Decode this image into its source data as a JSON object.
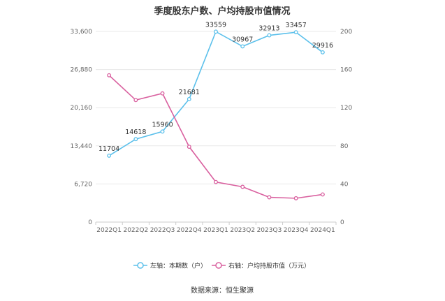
{
  "chart_data": {
    "type": "line",
    "title": "季度股东户数、户均持股市值情况",
    "categories": [
      "2022Q1",
      "2022Q2",
      "2022Q3",
      "2022Q4",
      "2023Q1",
      "2023Q2",
      "2023Q3",
      "2023Q4",
      "2024Q1"
    ],
    "left_axis": {
      "ticks": [
        "0",
        "6,720",
        "13,440",
        "20,160",
        "26,880",
        "33,600"
      ],
      "ylim": [
        0,
        33600
      ]
    },
    "right_axis": {
      "ticks": [
        "0",
        "40",
        "80",
        "120",
        "160",
        "200"
      ],
      "ylim": [
        0,
        200
      ]
    },
    "series": [
      {
        "name": "左轴：本期数（户）",
        "axis": "left",
        "color": "#5bc0eb",
        "values": [
          11704,
          14618,
          15960,
          21681,
          33559,
          30967,
          32913,
          33457,
          29916
        ],
        "labels": [
          "11704",
          "14618",
          "15960",
          "21681",
          "33559",
          "30967",
          "32913",
          "33457",
          "29916"
        ]
      },
      {
        "name": "右轴：户均持股市值（万元）",
        "axis": "right",
        "color": "#d9609f",
        "values": [
          154,
          128,
          135,
          79,
          42,
          37,
          26,
          25,
          29
        ]
      }
    ],
    "grid": true,
    "legend_position": "bottom"
  },
  "source": "数据来源：恒生聚源"
}
